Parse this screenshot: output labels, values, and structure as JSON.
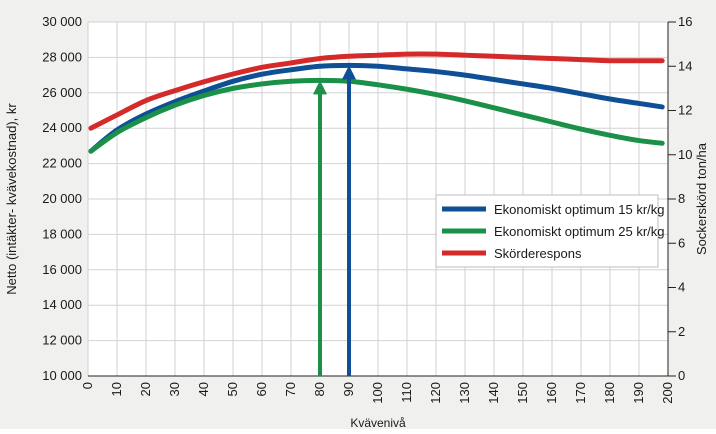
{
  "chart_data": {
    "type": "line",
    "xlabel": "Kvävenivå",
    "ylabel": "Netto (intäkter- kvävekostnad), kr",
    "y2label": "Sockerskörd ton/ha",
    "xlim": [
      0,
      200
    ],
    "ylim": [
      10000,
      30000
    ],
    "y2lim": [
      0,
      16
    ],
    "x_ticks": [
      "0",
      "10",
      "20",
      "30",
      "40",
      "50",
      "60",
      "70",
      "80",
      "90",
      "100",
      "110",
      "120",
      "130",
      "140",
      "150",
      "160",
      "170",
      "180",
      "190",
      "200"
    ],
    "y_ticks": [
      "10 000",
      "12 000",
      "14 000",
      "16 000",
      "18 000",
      "20 000",
      "22 000",
      "24 000",
      "26 000",
      "28 000",
      "30 000"
    ],
    "y2_ticks": [
      "0",
      "2",
      "4",
      "6",
      "8",
      "10",
      "12",
      "14",
      "16"
    ],
    "grid": true,
    "legend_position": "right",
    "x": [
      0,
      10,
      20,
      30,
      40,
      50,
      60,
      70,
      80,
      90,
      100,
      110,
      120,
      130,
      140,
      150,
      160,
      170,
      180,
      190,
      198
    ],
    "series": [
      {
        "name": "Ekonomiskt optimum 15 kr/kg",
        "color": "#0f4f96",
        "values": [
          22700,
          23900,
          24800,
          25500,
          26100,
          26650,
          27050,
          27300,
          27500,
          27550,
          27500,
          27350,
          27200,
          27000,
          26750,
          26500,
          26250,
          25950,
          25650,
          25400,
          25200
        ]
      },
      {
        "name": "Ekonomiskt optimum 25 kr/kg",
        "color": "#1a9048",
        "values": [
          22700,
          23750,
          24600,
          25300,
          25850,
          26250,
          26500,
          26650,
          26700,
          26650,
          26450,
          26200,
          25900,
          25550,
          25150,
          24750,
          24350,
          23950,
          23600,
          23300,
          23150
        ]
      },
      {
        "name": "Skörderespons",
        "color": "#d42a2a",
        "values": [
          11.2,
          11.8,
          12.45,
          12.9,
          13.3,
          13.65,
          13.95,
          14.15,
          14.35,
          14.45,
          14.5,
          14.55,
          14.55,
          14.5,
          14.45,
          14.4,
          14.35,
          14.3,
          14.25,
          14.25,
          14.25
        ]
      }
    ],
    "annotations": [
      {
        "type": "arrow",
        "color": "#1a9048",
        "x": 80,
        "y_top": 26700
      },
      {
        "type": "arrow",
        "color": "#0f4f96",
        "x": 90,
        "y_top": 27550
      }
    ]
  }
}
